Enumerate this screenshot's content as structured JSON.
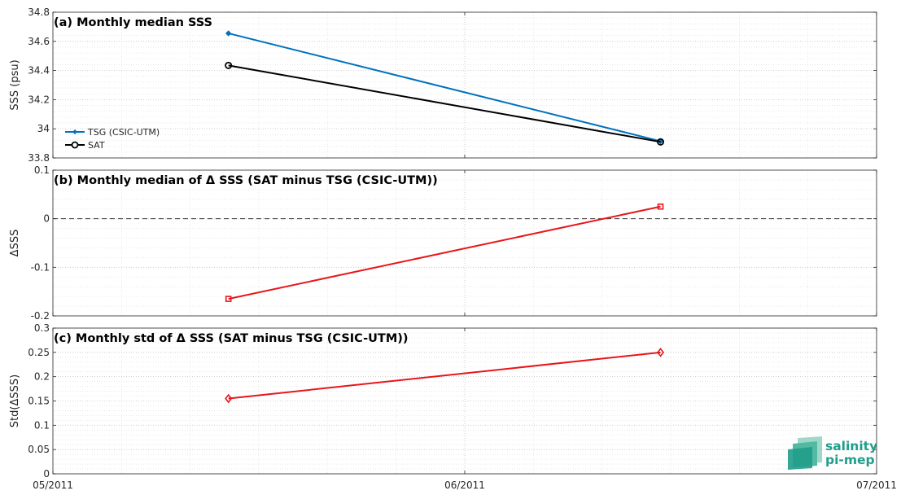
{
  "chart_data": [
    {
      "type": "line",
      "title": "(a) Monthly median SSS",
      "xlabel": "",
      "ylabel": "SSS (psu)",
      "x_ticks": [
        "05/2011",
        "06/2011",
        "07/2011"
      ],
      "ylim": [
        33.8,
        34.8
      ],
      "y_ticks": [
        "33.8",
        "34",
        "34.2",
        "34.4",
        "34.6",
        "34.8"
      ],
      "grid": true,
      "legend_position": "bottom-left",
      "series": [
        {
          "name": "TSG (CSIC-UTM)",
          "color": "#0072bd",
          "marker": "dot",
          "x": [
            "2011-05-14",
            "2011-06-15"
          ],
          "y": [
            34.655,
            33.915
          ]
        },
        {
          "name": "SAT",
          "color": "#000000",
          "marker": "circle",
          "x": [
            "2011-05-14",
            "2011-06-15"
          ],
          "y": [
            34.435,
            33.91
          ]
        }
      ]
    },
    {
      "type": "line",
      "title": "(b) Monthly median of Δ SSS (SAT minus TSG (CSIC-UTM))",
      "xlabel": "",
      "ylabel": "ΔSSS",
      "x_ticks": [
        "05/2011",
        "06/2011",
        "07/2011"
      ],
      "ylim": [
        -0.2,
        0.1
      ],
      "y_ticks": [
        "-0.2",
        "-0.1",
        "0",
        "0.1"
      ],
      "grid": true,
      "zero_line": true,
      "series": [
        {
          "color": "#e8161b",
          "marker": "square",
          "x": [
            "2011-05-14",
            "2011-06-15"
          ],
          "y": [
            -0.165,
            0.025
          ]
        }
      ]
    },
    {
      "type": "line",
      "title": "(c) Monthly std of Δ SSS (SAT minus TSG (CSIC-UTM))",
      "xlabel": "",
      "ylabel": "Std(ΔSSS)",
      "x_ticks": [
        "05/2011",
        "06/2011",
        "07/2011"
      ],
      "ylim": [
        0,
        0.3
      ],
      "y_ticks": [
        "0",
        "0.05",
        "0.1",
        "0.15",
        "0.2",
        "0.25",
        "0.3"
      ],
      "grid": true,
      "series": [
        {
          "color": "#e8161b",
          "marker": "diamond",
          "x": [
            "2011-05-14",
            "2011-06-15"
          ],
          "y": [
            0.155,
            0.25
          ]
        }
      ]
    }
  ],
  "logo": {
    "line1": "salinity",
    "line2": "pi-mep",
    "color": "#1f9d8a"
  }
}
